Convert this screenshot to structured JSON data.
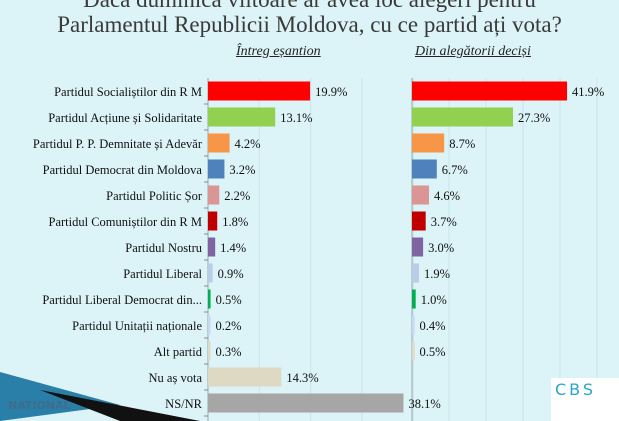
{
  "title_line1": "Dacă duminica viitoare ar avea loc alegeri pentru",
  "title_line2": "Parlamentul Republicii Moldova, cu ce partid ați vota?",
  "logos": {
    "left": "NAȚIONAL",
    "right": "CBS"
  },
  "chart_data": [
    {
      "type": "bar",
      "orientation": "horizontal",
      "title": "Întreg eșantion",
      "xlim": [
        0,
        40
      ],
      "categories": [
        "Partidul Socialiștilor din R M",
        "Partidul Acțiune și Solidaritate",
        "Partidul P. P. Demnitate și Adevăr",
        "Partidul Democrat din Moldova",
        "Partidul Politic Șor",
        "Partidul Comuniștilor din R M",
        "Partidul Nostru",
        "Partidul Liberal",
        "Partidul Liberal Democrat din...",
        "Partidul Unitații naționale",
        "Alt partid",
        "Nu aș vota",
        "NS/NR"
      ],
      "values": [
        19.9,
        13.1,
        4.2,
        3.2,
        2.2,
        1.8,
        1.4,
        0.9,
        0.5,
        0.2,
        0.3,
        14.3,
        38.1
      ],
      "labels": [
        "19.9%",
        "13.1%",
        "4.2%",
        "3.2%",
        "2.2%",
        "1.8%",
        "1.4%",
        "0.9%",
        "0.5%",
        "0.2%",
        "0.3%",
        "14.3%",
        "38.1%"
      ],
      "colors": [
        "#ff0000",
        "#92d050",
        "#f79646",
        "#4f81bd",
        "#d99694",
        "#c00000",
        "#8064a2",
        "#b9cde5",
        "#00b050",
        "#c6d9f1",
        "#ddd9c3",
        "#ddd9c3",
        "#a6a6a6"
      ]
    },
    {
      "type": "bar",
      "orientation": "horizontal",
      "title": "Din alegătorii deciși",
      "xlim": [
        0,
        50
      ],
      "values": [
        41.9,
        27.3,
        8.7,
        6.7,
        4.6,
        3.7,
        3.0,
        1.9,
        1.0,
        0.4,
        0.5
      ],
      "labels": [
        "41.9%",
        "27.3%",
        "8.7%",
        "6.7%",
        "4.6%",
        "3.7%",
        "3.0%",
        "1.9%",
        "1.0%",
        "0.4%",
        "0.5%"
      ],
      "colors": [
        "#ff0000",
        "#92d050",
        "#f79646",
        "#4f81bd",
        "#d99694",
        "#c00000",
        "#8064a2",
        "#b9cde5",
        "#00b050",
        "#c6d9f1",
        "#ddd9c3"
      ]
    }
  ]
}
